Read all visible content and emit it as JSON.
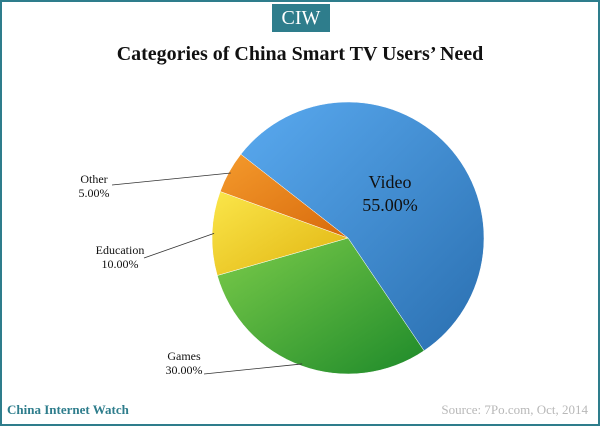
{
  "badge": "CIW",
  "footer": {
    "brand": "China Internet Watch",
    "source": "Source: 7Po.com, Oct, 2014"
  },
  "chart_data": {
    "type": "pie",
    "title": "Categories of China Smart TV Users’ Need",
    "legend": "none",
    "slices": [
      {
        "label": "Video",
        "value": 55.0,
        "value_label": "55.00%",
        "color": "#4a9be2"
      },
      {
        "label": "Games",
        "value": 30.0,
        "value_label": "30.00%",
        "color": "#4caf3c"
      },
      {
        "label": "Education",
        "value": 10.0,
        "value_label": "10.00%",
        "color": "#f0d41e"
      },
      {
        "label": "Other",
        "value": 5.0,
        "value_label": "5.00%",
        "color": "#ee8a1a"
      }
    ]
  }
}
